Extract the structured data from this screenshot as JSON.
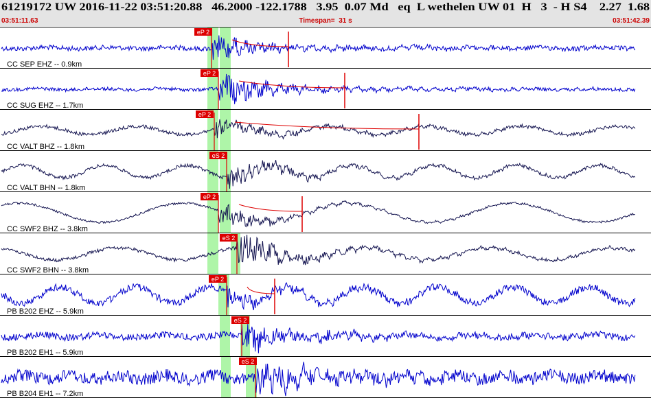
{
  "header": {
    "title": "61219172 UW 2016-11-22 03:51:20.88   46.2000 -122.1788   3.95  0.07 Md   eq  L wethelen UW 01  H   3  - H S4    2.27  1.68",
    "start_time": "03:51:11.63",
    "timespan": "Timespan=  31 s",
    "end_time": "03:51:42.39"
  },
  "traces": [
    {
      "label": "CC SEP EHZ -- 0.9km",
      "pick": "eP 2"
    },
    {
      "label": "CC SUG EHZ -- 1.7km",
      "pick": "eP 2"
    },
    {
      "label": "CC VALT BHZ -- 1.8km",
      "pick": "eP 2"
    },
    {
      "label": "CC VALT BHN -- 1.8km",
      "pick": "eS 2"
    },
    {
      "label": "CC SWF2 BHZ -- 3.8km",
      "pick": "eP 2"
    },
    {
      "label": "CC SWF2 BHN -- 3.8km",
      "pick": "eS 2"
    },
    {
      "label": "PB B202 EHZ -- 5.9km",
      "pick": "eP 2"
    },
    {
      "label": "PB B202 EH1 -- 5.9km",
      "pick": "eS 2"
    },
    {
      "label": "PB B204 EH1 -- 7.2km",
      "pick": "eS 2"
    }
  ]
}
